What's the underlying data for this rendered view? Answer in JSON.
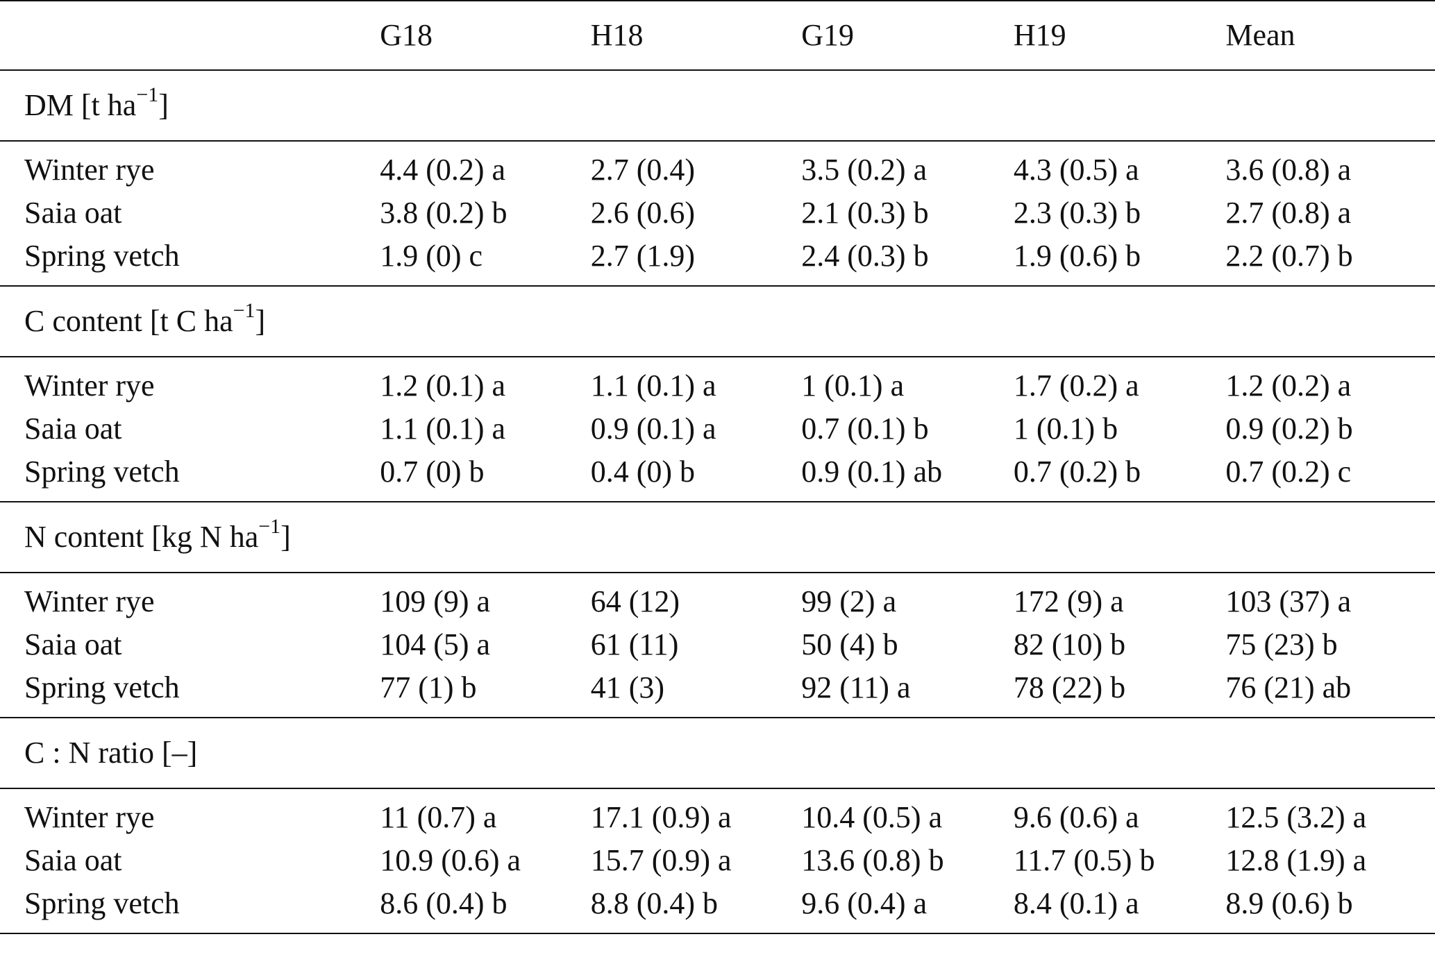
{
  "header": {
    "blank": "",
    "columns": [
      "G18",
      "H18",
      "G19",
      "H19",
      "Mean"
    ]
  },
  "groups": [
    {
      "label_main": "DM [t ha",
      "label_sup": "−1",
      "label_end": "]",
      "rows": [
        {
          "name": "Winter rye",
          "values": [
            "4.4 (0.2) a",
            "2.7 (0.4)",
            "3.5 (0.2) a",
            "4.3 (0.5) a",
            "3.6 (0.8) a"
          ]
        },
        {
          "name": "Saia oat",
          "values": [
            "3.8 (0.2) b",
            "2.6 (0.6)",
            "2.1 (0.3) b",
            "2.3 (0.3) b",
            "2.7 (0.8) a"
          ]
        },
        {
          "name": "Spring vetch",
          "values": [
            "1.9 (0) c",
            "2.7 (1.9)",
            "2.4 (0.3) b",
            "1.9 (0.6) b",
            "2.2 (0.7) b"
          ]
        }
      ]
    },
    {
      "label_main": "C content [t C ha",
      "label_sup": "−1",
      "label_end": "]",
      "rows": [
        {
          "name": "Winter rye",
          "values": [
            "1.2 (0.1) a",
            "1.1 (0.1) a",
            "1 (0.1) a",
            "1.7 (0.2) a",
            "1.2 (0.2) a"
          ]
        },
        {
          "name": "Saia oat",
          "values": [
            "1.1 (0.1) a",
            "0.9 (0.1) a",
            "0.7 (0.1) b",
            "1 (0.1) b",
            "0.9 (0.2) b"
          ]
        },
        {
          "name": "Spring vetch",
          "values": [
            "0.7 (0) b",
            "0.4 (0) b",
            "0.9 (0.1) ab",
            "0.7 (0.2) b",
            "0.7 (0.2) c"
          ]
        }
      ]
    },
    {
      "label_main": "N content [kg N ha",
      "label_sup": "−1",
      "label_end": "]",
      "rows": [
        {
          "name": "Winter rye",
          "values": [
            "109 (9) a",
            "64 (12)",
            "99 (2) a",
            "172 (9) a",
            "103 (37) a"
          ]
        },
        {
          "name": "Saia oat",
          "values": [
            "104 (5) a",
            "61 (11)",
            "50 (4) b",
            "82 (10) b",
            "75 (23) b"
          ]
        },
        {
          "name": "Spring vetch",
          "values": [
            "77 (1) b",
            "41 (3)",
            "92 (11) a",
            "78 (22) b",
            "76 (21) ab"
          ]
        }
      ]
    },
    {
      "label_main": "C : N ratio [–]",
      "label_sup": "",
      "label_end": "",
      "rows": [
        {
          "name": "Winter rye",
          "values": [
            "11 (0.7) a",
            "17.1 (0.9) a",
            "10.4 (0.5) a",
            "9.6 (0.6) a",
            "12.5 (3.2) a"
          ]
        },
        {
          "name": "Saia oat",
          "values": [
            "10.9 (0.6) a",
            "15.7 (0.9) a",
            "13.6 (0.8) b",
            "11.7 (0.5) b",
            "12.8 (1.9) a"
          ]
        },
        {
          "name": "Spring vetch",
          "values": [
            "8.6 (0.4) b",
            "8.8 (0.4) b",
            "9.6 (0.4) a",
            "8.4 (0.1) a",
            "8.9 (0.6) b"
          ]
        }
      ]
    }
  ]
}
